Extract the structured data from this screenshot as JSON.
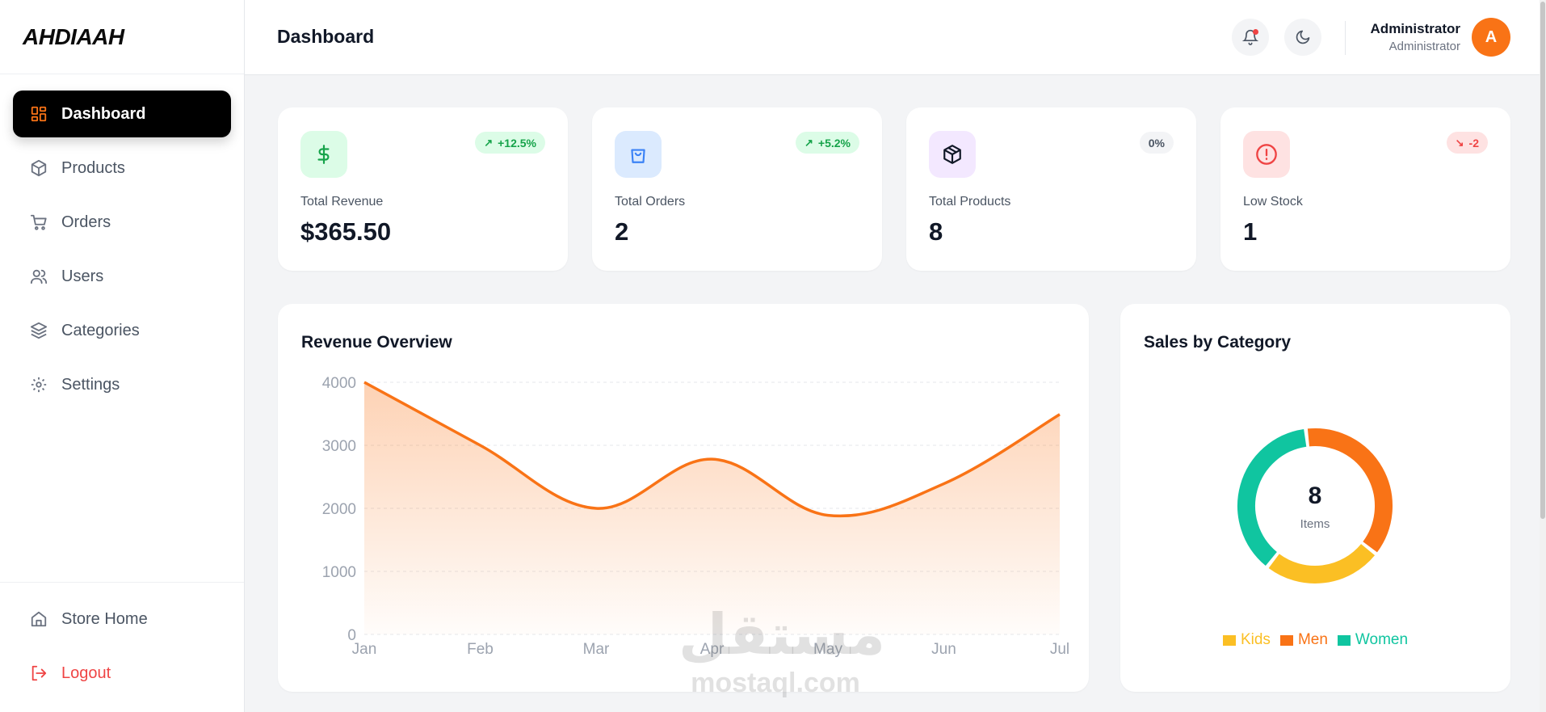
{
  "brand": "AHDIAAH",
  "sidebar": {
    "items": [
      {
        "label": "Dashboard",
        "icon": "dashboard-grid-icon",
        "active": true
      },
      {
        "label": "Products",
        "icon": "box-icon"
      },
      {
        "label": "Orders",
        "icon": "cart-icon"
      },
      {
        "label": "Users",
        "icon": "users-icon"
      },
      {
        "label": "Categories",
        "icon": "layers-icon"
      },
      {
        "label": "Settings",
        "icon": "gear-icon"
      }
    ],
    "bottom": [
      {
        "label": "Store Home",
        "icon": "home-icon"
      },
      {
        "label": "Logout",
        "icon": "logout-icon"
      }
    ]
  },
  "header": {
    "title": "Dashboard",
    "user_name": "Administrator",
    "user_role": "Administrator",
    "avatar_initial": "A"
  },
  "stats": [
    {
      "label": "Total Revenue",
      "value": "$365.50",
      "badge": "+12.5%",
      "trend": "up",
      "icon": "dollar-icon"
    },
    {
      "label": "Total Orders",
      "value": "2",
      "badge": "+5.2%",
      "trend": "up",
      "icon": "shopping-bag-icon"
    },
    {
      "label": "Total Products",
      "value": "8",
      "badge": "0%",
      "trend": "flat",
      "icon": "package-icon"
    },
    {
      "label": "Low Stock",
      "value": "1",
      "badge": "-2",
      "trend": "down",
      "icon": "alert-circle-icon"
    }
  ],
  "colors": {
    "accent": "#f97316",
    "kids": "#fbbf24",
    "men": "#f97316",
    "women": "#10c5a0",
    "up_bg": "#dcfce7",
    "up_text": "#16a34a",
    "down_bg": "#fee2e2",
    "down_text": "#ef4444"
  },
  "chart_data": [
    {
      "type": "area",
      "title": "Revenue Overview",
      "x": [
        "Jan",
        "Feb",
        "Mar",
        "Apr",
        "May",
        "Jun",
        "Jul"
      ],
      "yticks": [
        0,
        1000,
        2000,
        3000,
        4000
      ],
      "ylim": [
        0,
        4000
      ],
      "series": [
        {
          "values": [
            4000,
            3000,
            2000,
            2780,
            1890,
            2390,
            3490
          ]
        }
      ],
      "grid": true,
      "color": "#f97316"
    },
    {
      "type": "pie",
      "title": "Sales by Category",
      "center_value": "8",
      "center_label": "Items",
      "categories": [
        "Kids",
        "Men",
        "Women"
      ],
      "values": [
        2,
        3,
        3
      ],
      "colors": [
        "#fbbf24",
        "#f97316",
        "#10c5a0"
      ],
      "legend": "bottom"
    }
  ],
  "watermark": {
    "arabic": "مستقل",
    "latin": "mostaql.com"
  }
}
